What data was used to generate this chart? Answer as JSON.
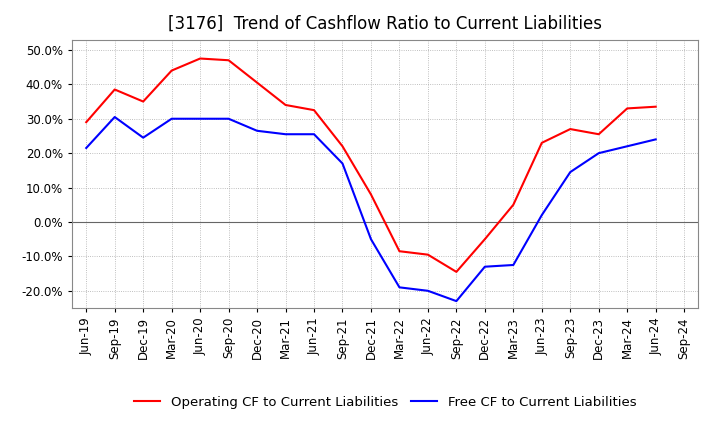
{
  "title": "[3176]  Trend of Cashflow Ratio to Current Liabilities",
  "legend_labels": [
    "Operating CF to Current Liabilities",
    "Free CF to Current Liabilities"
  ],
  "x_labels": [
    "Jun-19",
    "Sep-19",
    "Dec-19",
    "Mar-20",
    "Jun-20",
    "Sep-20",
    "Dec-20",
    "Mar-21",
    "Jun-21",
    "Sep-21",
    "Dec-21",
    "Mar-22",
    "Jun-22",
    "Sep-22",
    "Dec-22",
    "Mar-23",
    "Jun-23",
    "Sep-23",
    "Dec-23",
    "Mar-24",
    "Jun-24",
    "Sep-24"
  ],
  "operating_cf": [
    29.0,
    38.5,
    35.0,
    44.0,
    47.5,
    47.0,
    40.5,
    34.0,
    32.5,
    22.0,
    8.0,
    -8.5,
    -9.5,
    -14.5,
    -5.0,
    5.0,
    23.0,
    27.0,
    25.5,
    33.0,
    33.5,
    null
  ],
  "free_cf": [
    21.5,
    30.5,
    24.5,
    30.0,
    30.0,
    30.0,
    26.5,
    25.5,
    25.5,
    17.0,
    -5.0,
    -19.0,
    -20.0,
    -23.0,
    -13.0,
    -12.5,
    2.0,
    14.5,
    20.0,
    22.0,
    24.0,
    null
  ],
  "ylim": [
    -25,
    53
  ],
  "yticks": [
    -20,
    -10,
    0,
    10,
    20,
    30,
    40,
    50
  ],
  "background_color": "#ffffff",
  "grid_color": "#aaaaaa",
  "title_fontsize": 12,
  "tick_fontsize": 8.5,
  "legend_fontsize": 9.5
}
